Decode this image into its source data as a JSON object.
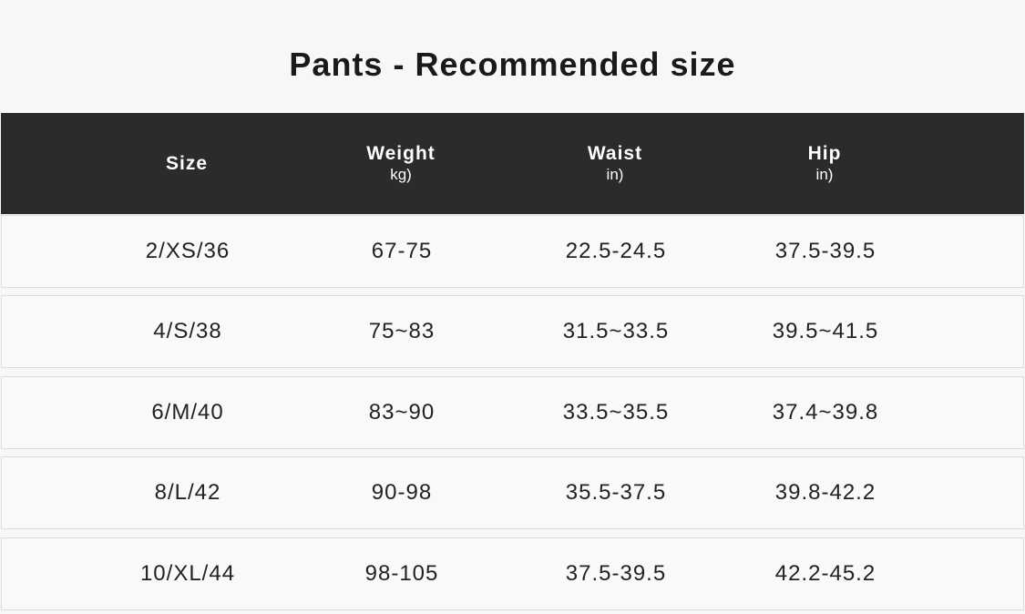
{
  "title": "Pants - Recommended size",
  "columns": [
    {
      "label": "Size",
      "unit": ""
    },
    {
      "label": "Weight",
      "unit": "kg)"
    },
    {
      "label": "Waist",
      "unit": "in)"
    },
    {
      "label": "Hip",
      "unit": "in)"
    }
  ],
  "rows": [
    [
      "2/XS/36",
      "67-75",
      "22.5-24.5",
      "37.5-39.5"
    ],
    [
      "4/S/38",
      "75~83",
      "31.5~33.5",
      "39.5~41.5"
    ],
    [
      "6/M/40",
      "83~90",
      "33.5~35.5",
      "37.4~39.8"
    ],
    [
      "8/L/42",
      "90-98",
      "35.5-37.5",
      "39.8-42.2"
    ],
    [
      "10/XL/44",
      "98-105",
      "37.5-39.5",
      "42.2-45.2"
    ]
  ]
}
